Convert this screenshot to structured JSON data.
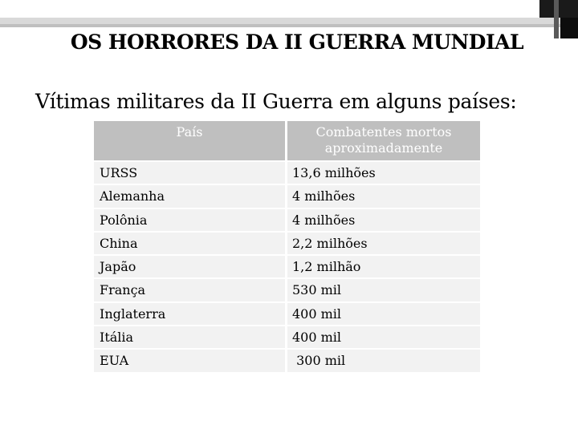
{
  "title": "OS HORRORES DA II GUERRA MUNDIAL",
  "subtitle": "Vítimas militares da II Guerra em alguns países:",
  "table": {
    "headers": [
      "País",
      "Combatentes mortos aproximadamente"
    ],
    "header_col2_line1": "Combatentes mortos",
    "header_col2_line2": "aproximadamente",
    "rows": [
      [
        "URSS",
        "13,6 milhões"
      ],
      [
        "Alemanha",
        "4 milhões"
      ],
      [
        "Polônia",
        "4 milhões"
      ],
      [
        "China",
        "2,2 milhões"
      ],
      [
        "Japão",
        "1,2 milhão"
      ],
      [
        "França",
        "530 mil"
      ],
      [
        "Inglaterra",
        "400 mil"
      ],
      [
        "Itália",
        "400 mil"
      ],
      [
        "EUA",
        " 300 mil"
      ]
    ]
  },
  "colors": {
    "header_bg": "#bfbfbf",
    "cell_bg": "#f2f2f2",
    "accent_dark": "#1a1a1a"
  }
}
